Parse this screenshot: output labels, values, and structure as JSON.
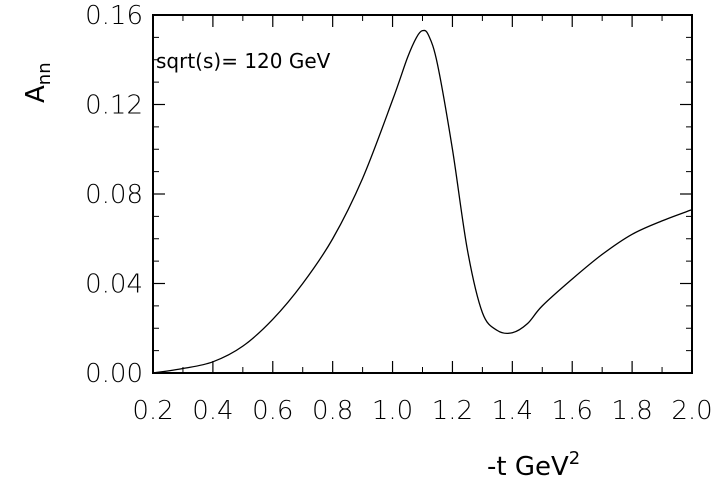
{
  "chart_data": {
    "type": "line",
    "title": "",
    "annotation": "sqrt(s)= 120 GeV",
    "xlabel": "-t GeV",
    "xlabel_sup": "2",
    "ylabel": "A",
    "ylabel_sub": "nn",
    "xlim": [
      0.2,
      2.0
    ],
    "ylim": [
      0.0,
      0.16
    ],
    "xticks": [
      "0.2",
      "0.4",
      "0.6",
      "0.8",
      "1.0",
      "1.2",
      "1.4",
      "1.6",
      "1.8",
      "2.0"
    ],
    "yticks": [
      "0.00",
      "0.04",
      "0.08",
      "0.12",
      "0.16"
    ],
    "grid": false,
    "series": [
      {
        "x": [
          0.2,
          0.3,
          0.4,
          0.5,
          0.6,
          0.7,
          0.8,
          0.9,
          1.0,
          1.05,
          1.08,
          1.1,
          1.12,
          1.15,
          1.2,
          1.25,
          1.3,
          1.35,
          1.4,
          1.45,
          1.5,
          1.6,
          1.7,
          1.8,
          1.9,
          2.0
        ],
        "y": [
          0.0,
          0.002,
          0.005,
          0.012,
          0.024,
          0.04,
          0.06,
          0.087,
          0.122,
          0.141,
          0.15,
          0.153,
          0.151,
          0.138,
          0.1,
          0.055,
          0.027,
          0.019,
          0.018,
          0.022,
          0.03,
          0.042,
          0.053,
          0.062,
          0.068,
          0.073
        ]
      }
    ]
  }
}
